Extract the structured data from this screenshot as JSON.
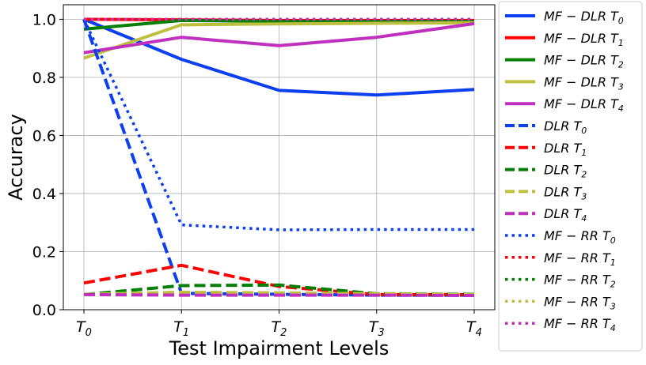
{
  "chart_data": {
    "type": "line",
    "title": "",
    "xlabel": "Test Impairment Levels",
    "ylabel": "Accuracy",
    "categories": [
      "T0",
      "T1",
      "T2",
      "T3",
      "T4"
    ],
    "category_labels": [
      {
        "base": "T",
        "sub": "0"
      },
      {
        "base": "T",
        "sub": "1"
      },
      {
        "base": "T",
        "sub": "2"
      },
      {
        "base": "T",
        "sub": "3"
      },
      {
        "base": "T",
        "sub": "4"
      }
    ],
    "ylim": [
      0.0,
      1.05
    ],
    "yticks": [
      "0.0",
      "0.2",
      "0.4",
      "0.6",
      "0.8",
      "1.0"
    ],
    "grid": true,
    "legend_position": "outside-right",
    "series": [
      {
        "name": "MF−DLR T0",
        "label_base": "MF − DLR T",
        "label_sub": "0",
        "color": "#0c3ff0",
        "style": "solid",
        "values": [
          1.0,
          0.862,
          0.755,
          0.739,
          0.758
        ]
      },
      {
        "name": "MF−DLR T1",
        "label_base": "MF − DLR T",
        "label_sub": "1",
        "color": "#ff0000",
        "style": "solid",
        "values": [
          1.0,
          0.998,
          0.996,
          0.996,
          0.996
        ]
      },
      {
        "name": "MF−DLR T2",
        "label_base": "MF − DLR T",
        "label_sub": "2",
        "color": "#007f00",
        "style": "solid",
        "values": [
          0.966,
          0.996,
          0.993,
          0.993,
          0.993
        ]
      },
      {
        "name": "MF−DLR T3",
        "label_base": "MF − DLR T",
        "label_sub": "3",
        "color": "#bfbf3f",
        "style": "solid",
        "values": [
          0.866,
          0.981,
          0.984,
          0.986,
          0.988
        ]
      },
      {
        "name": "MF−DLR T4",
        "label_base": "MF − DLR T",
        "label_sub": "4",
        "color": "#bf30bf",
        "style": "solid",
        "values": [
          0.885,
          0.938,
          0.909,
          0.938,
          0.985
        ]
      },
      {
        "name": "DLR T0",
        "label_base": "DLR T",
        "label_sub": "0",
        "color": "#0c3ff0",
        "style": "dashed",
        "values": [
          1.0,
          0.056,
          0.053,
          0.05,
          0.05
        ]
      },
      {
        "name": "DLR T1",
        "label_base": "DLR T",
        "label_sub": "1",
        "color": "#ff0000",
        "style": "dashed",
        "values": [
          0.092,
          0.153,
          0.08,
          0.052,
          0.052
        ]
      },
      {
        "name": "DLR T2",
        "label_base": "DLR T",
        "label_sub": "2",
        "color": "#007f00",
        "style": "dashed",
        "values": [
          0.052,
          0.083,
          0.085,
          0.055,
          0.053
        ]
      },
      {
        "name": "DLR T3",
        "label_base": "DLR T",
        "label_sub": "3",
        "color": "#bfbf3f",
        "style": "dashed",
        "values": [
          0.053,
          0.06,
          0.058,
          0.055,
          0.052
        ]
      },
      {
        "name": "DLR T4",
        "label_base": "DLR T",
        "label_sub": "4",
        "color": "#bf30bf",
        "style": "dashed",
        "values": [
          0.052,
          0.05,
          0.05,
          0.05,
          0.049
        ]
      },
      {
        "name": "MF−RR T0",
        "label_base": "MF − RR T",
        "label_sub": "0",
        "color": "#0c3ff0",
        "style": "dotted",
        "values": [
          1.0,
          0.292,
          0.275,
          0.276,
          0.276
        ]
      },
      {
        "name": "MF−RR T1",
        "label_base": "MF − RR T",
        "label_sub": "1",
        "color": "#ff0000",
        "style": "dotted",
        "values": [
          1.0,
          1.0,
          1.0,
          1.0,
          1.0
        ]
      },
      {
        "name": "MF−RR T2",
        "label_base": "MF − RR T",
        "label_sub": "2",
        "color": "#007f00",
        "style": "dotted",
        "values": [
          1.0,
          1.0,
          1.0,
          1.0,
          1.0
        ]
      },
      {
        "name": "MF−RR T3",
        "label_base": "MF − RR T",
        "label_sub": "3",
        "color": "#bfbf3f",
        "style": "dotted",
        "values": [
          1.0,
          1.0,
          1.0,
          1.0,
          1.0
        ]
      },
      {
        "name": "MF−RR T4",
        "label_base": "MF − RR T",
        "label_sub": "4",
        "color": "#bf30bf",
        "style": "dotted",
        "values": [
          1.0,
          1.0,
          1.0,
          1.0,
          1.0
        ]
      }
    ]
  }
}
